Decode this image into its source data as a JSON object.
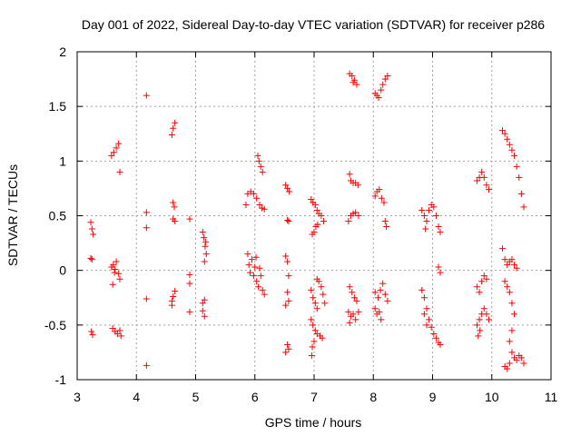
{
  "chart_data": {
    "type": "scatter",
    "title": "Day 001 of 2022, Sidereal Day-to-day VTEC variation (SDTVAR) for receiver p286",
    "xlabel": "GPS time / hours",
    "ylabel": "SDTVAR / TECUs",
    "xlim": [
      3,
      11
    ],
    "ylim": [
      -1,
      2
    ],
    "xticks": [
      3,
      4,
      5,
      6,
      7,
      8,
      9,
      10,
      11
    ],
    "yticks": [
      -1,
      -0.5,
      0,
      0.5,
      1,
      1.5,
      2
    ],
    "xtick_labels": [
      "3",
      "4",
      "5",
      "6",
      "7",
      "8",
      "9",
      "10",
      "11"
    ],
    "ytick_labels": [
      "-1",
      "-0.5",
      "0",
      "0.5",
      "1",
      "1.5",
      "2"
    ],
    "grid": true,
    "marker": "+",
    "color": "#ff0000",
    "series": [
      {
        "name": "SDTVAR",
        "points": [
          [
            3.23,
            0.44
          ],
          [
            3.25,
            0.38
          ],
          [
            3.27,
            0.33
          ],
          [
            3.23,
            0.11
          ],
          [
            3.25,
            0.1
          ],
          [
            3.24,
            -0.56
          ],
          [
            3.26,
            -0.59
          ],
          [
            3.58,
            1.05
          ],
          [
            3.62,
            1.08
          ],
          [
            3.66,
            1.12
          ],
          [
            3.7,
            1.16
          ],
          [
            3.72,
            0.9
          ],
          [
            3.58,
            0.03
          ],
          [
            3.61,
            0.05
          ],
          [
            3.63,
            -0.02
          ],
          [
            3.66,
            0.08
          ],
          [
            3.7,
            -0.03
          ],
          [
            3.72,
            -0.08
          ],
          [
            3.6,
            -0.13
          ],
          [
            3.64,
            0.01
          ],
          [
            3.6,
            -0.53
          ],
          [
            3.64,
            -0.56
          ],
          [
            3.68,
            -0.58
          ],
          [
            3.72,
            -0.55
          ],
          [
            3.74,
            -0.6
          ],
          [
            4.17,
            1.6
          ],
          [
            4.17,
            0.53
          ],
          [
            4.17,
            0.39
          ],
          [
            4.17,
            -0.26
          ],
          [
            4.17,
            -0.87
          ],
          [
            4.6,
            1.24
          ],
          [
            4.62,
            1.3
          ],
          [
            4.65,
            1.35
          ],
          [
            4.62,
            0.62
          ],
          [
            4.64,
            0.58
          ],
          [
            4.62,
            0.47
          ],
          [
            4.65,
            0.45
          ],
          [
            4.6,
            -0.28
          ],
          [
            4.62,
            -0.24
          ],
          [
            4.65,
            -0.19
          ],
          [
            4.6,
            -0.32
          ],
          [
            4.9,
            0.47
          ],
          [
            4.9,
            -0.04
          ],
          [
            4.9,
            -0.12
          ],
          [
            4.9,
            -0.38
          ],
          [
            5.12,
            0.35
          ],
          [
            5.14,
            0.3
          ],
          [
            5.16,
            0.22
          ],
          [
            5.18,
            0.15
          ],
          [
            5.15,
            0.08
          ],
          [
            5.17,
            0.26
          ],
          [
            5.12,
            -0.3
          ],
          [
            5.15,
            -0.27
          ],
          [
            5.12,
            -0.37
          ],
          [
            5.15,
            -0.42
          ],
          [
            5.85,
            0.6
          ],
          [
            5.88,
            0.7
          ],
          [
            5.93,
            0.72
          ],
          [
            5.98,
            0.7
          ],
          [
            6.03,
            0.66
          ],
          [
            6.08,
            0.6
          ],
          [
            6.12,
            0.57
          ],
          [
            6.16,
            0.56
          ],
          [
            6.05,
            1.05
          ],
          [
            6.07,
            1.0
          ],
          [
            6.1,
            0.95
          ],
          [
            6.13,
            0.9
          ],
          [
            5.88,
            0.15
          ],
          [
            5.9,
            0.05
          ],
          [
            5.92,
            -0.02
          ],
          [
            5.95,
            0.1
          ],
          [
            5.98,
            -0.05
          ],
          [
            6.0,
            0.03
          ],
          [
            6.03,
            -0.1
          ],
          [
            6.06,
            -0.15
          ],
          [
            6.1,
            -0.05
          ],
          [
            6.13,
            -0.18
          ],
          [
            6.16,
            -0.22
          ],
          [
            6.02,
            0.12
          ],
          [
            6.08,
            0.02
          ],
          [
            6.52,
            0.78
          ],
          [
            6.55,
            0.75
          ],
          [
            6.58,
            0.72
          ],
          [
            6.55,
            0.46
          ],
          [
            6.57,
            0.45
          ],
          [
            6.52,
            0.13
          ],
          [
            6.55,
            0.08
          ],
          [
            6.57,
            -0.05
          ],
          [
            6.55,
            -0.2
          ],
          [
            6.57,
            -0.28
          ],
          [
            6.52,
            -0.32
          ],
          [
            6.55,
            -0.68
          ],
          [
            6.57,
            -0.72
          ],
          [
            6.52,
            -0.75
          ],
          [
            6.95,
            0.65
          ],
          [
            6.98,
            0.62
          ],
          [
            7.02,
            0.6
          ],
          [
            7.05,
            0.55
          ],
          [
            7.08,
            0.52
          ],
          [
            7.12,
            0.5
          ],
          [
            7.16,
            0.45
          ],
          [
            7.0,
            0.35
          ],
          [
            7.03,
            0.4
          ],
          [
            7.06,
            0.42
          ],
          [
            6.97,
            0.33
          ],
          [
            6.95,
            -0.18
          ],
          [
            6.98,
            -0.25
          ],
          [
            7.02,
            -0.3
          ],
          [
            7.05,
            -0.35
          ],
          [
            7.08,
            -0.1
          ],
          [
            7.12,
            -0.15
          ],
          [
            7.15,
            -0.22
          ],
          [
            7.18,
            -0.3
          ],
          [
            7.05,
            -0.08
          ],
          [
            6.95,
            -0.45
          ],
          [
            6.98,
            -0.5
          ],
          [
            7.02,
            -0.55
          ],
          [
            7.05,
            -0.58
          ],
          [
            7.1,
            -0.6
          ],
          [
            7.14,
            -0.62
          ],
          [
            6.97,
            -0.7
          ],
          [
            6.96,
            -0.78
          ],
          [
            7.0,
            -0.65
          ],
          [
            7.6,
            1.8
          ],
          [
            7.64,
            1.78
          ],
          [
            7.68,
            1.74
          ],
          [
            7.72,
            1.7
          ],
          [
            7.66,
            1.72
          ],
          [
            7.6,
            0.88
          ],
          [
            7.62,
            0.82
          ],
          [
            7.66,
            0.8
          ],
          [
            7.7,
            0.8
          ],
          [
            7.74,
            0.78
          ],
          [
            7.58,
            0.45
          ],
          [
            7.62,
            0.5
          ],
          [
            7.66,
            0.52
          ],
          [
            7.7,
            0.53
          ],
          [
            7.75,
            0.5
          ],
          [
            7.6,
            -0.15
          ],
          [
            7.64,
            -0.2
          ],
          [
            7.68,
            -0.25
          ],
          [
            7.72,
            -0.28
          ],
          [
            7.58,
            -0.38
          ],
          [
            7.62,
            -0.42
          ],
          [
            7.66,
            -0.4
          ],
          [
            7.7,
            -0.45
          ],
          [
            7.75,
            -0.38
          ],
          [
            7.6,
            -0.48
          ],
          [
            8.03,
            1.62
          ],
          [
            8.06,
            1.6
          ],
          [
            8.09,
            1.58
          ],
          [
            8.13,
            1.65
          ],
          [
            8.16,
            1.7
          ],
          [
            8.2,
            1.75
          ],
          [
            8.24,
            1.78
          ],
          [
            8.03,
            0.68
          ],
          [
            8.06,
            0.72
          ],
          [
            8.1,
            0.74
          ],
          [
            8.14,
            0.66
          ],
          [
            8.18,
            0.62
          ],
          [
            8.2,
            0.45
          ],
          [
            8.22,
            0.4
          ],
          [
            8.03,
            -0.2
          ],
          [
            8.08,
            -0.25
          ],
          [
            8.12,
            -0.18
          ],
          [
            8.16,
            -0.12
          ],
          [
            8.2,
            -0.22
          ],
          [
            8.24,
            -0.28
          ],
          [
            8.03,
            -0.35
          ],
          [
            8.06,
            -0.4
          ],
          [
            8.1,
            -0.38
          ],
          [
            8.13,
            -0.45
          ],
          [
            8.82,
            0.55
          ],
          [
            8.86,
            0.5
          ],
          [
            8.9,
            0.45
          ],
          [
            8.94,
            0.55
          ],
          [
            8.98,
            0.6
          ],
          [
            9.02,
            0.58
          ],
          [
            9.06,
            0.5
          ],
          [
            9.1,
            0.4
          ],
          [
            9.13,
            0.35
          ],
          [
            8.88,
            0.38
          ],
          [
            9.1,
            0.03
          ],
          [
            9.13,
            -0.02
          ],
          [
            8.82,
            -0.18
          ],
          [
            8.86,
            -0.25
          ],
          [
            8.9,
            -0.35
          ],
          [
            8.94,
            -0.45
          ],
          [
            8.98,
            -0.52
          ],
          [
            9.02,
            -0.58
          ],
          [
            9.06,
            -0.62
          ],
          [
            9.1,
            -0.66
          ],
          [
            9.13,
            -0.68
          ],
          [
            8.9,
            -0.5
          ],
          [
            8.86,
            -0.4
          ],
          [
            9.75,
            0.82
          ],
          [
            9.79,
            0.85
          ],
          [
            9.83,
            0.9
          ],
          [
            9.87,
            0.85
          ],
          [
            9.91,
            0.78
          ],
          [
            9.95,
            0.74
          ],
          [
            9.75,
            -0.15
          ],
          [
            9.79,
            -0.2
          ],
          [
            9.83,
            -0.1
          ],
          [
            9.87,
            -0.05
          ],
          [
            9.91,
            -0.08
          ],
          [
            9.75,
            -0.5
          ],
          [
            9.79,
            -0.45
          ],
          [
            9.83,
            -0.4
          ],
          [
            9.87,
            -0.35
          ],
          [
            9.91,
            -0.4
          ],
          [
            9.95,
            -0.45
          ],
          [
            9.77,
            -0.6
          ],
          [
            9.8,
            -0.55
          ],
          [
            10.18,
            1.28
          ],
          [
            10.22,
            1.25
          ],
          [
            10.26,
            1.2
          ],
          [
            10.3,
            1.15
          ],
          [
            10.34,
            1.1
          ],
          [
            10.38,
            1.05
          ],
          [
            10.42,
            0.95
          ],
          [
            10.46,
            0.85
          ],
          [
            10.5,
            0.7
          ],
          [
            10.54,
            0.58
          ],
          [
            10.18,
            0.2
          ],
          [
            10.22,
            0.1
          ],
          [
            10.26,
            0.05
          ],
          [
            10.3,
            0.08
          ],
          [
            10.34,
            0.1
          ],
          [
            10.38,
            0.05
          ],
          [
            10.42,
            0.02
          ],
          [
            10.22,
            -0.1
          ],
          [
            10.26,
            -0.15
          ],
          [
            10.3,
            -0.2
          ],
          [
            10.34,
            -0.3
          ],
          [
            10.38,
            -0.4
          ],
          [
            10.22,
            -0.88
          ],
          [
            10.26,
            -0.9
          ],
          [
            10.3,
            -0.85
          ],
          [
            10.34,
            -0.75
          ],
          [
            10.38,
            -0.8
          ],
          [
            10.42,
            -0.82
          ],
          [
            10.46,
            -0.78
          ],
          [
            10.5,
            -0.8
          ],
          [
            10.54,
            -0.85
          ],
          [
            10.3,
            -0.65
          ],
          [
            10.34,
            -0.55
          ]
        ]
      }
    ]
  }
}
